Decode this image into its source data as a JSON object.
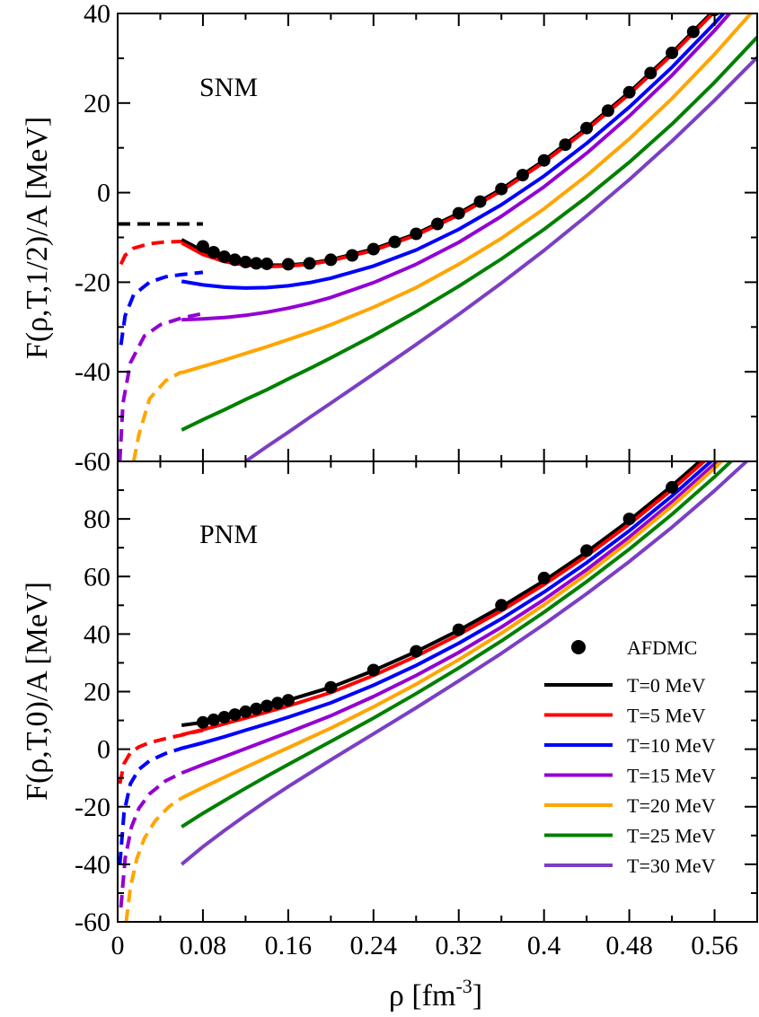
{
  "chart_data": [
    {
      "type": "line",
      "panel_label": "SNM",
      "ylabel": "F(ρ,T,1/2)/A [MeV]",
      "xlabel": "",
      "xlim": [
        0,
        0.6
      ],
      "ylim": [
        -60,
        40
      ],
      "yticks": [
        -60,
        -40,
        -20,
        0,
        20,
        40
      ],
      "ytick_labels": [
        "-60",
        "-40",
        "-20",
        "0",
        "20",
        "40"
      ],
      "grid": false,
      "markers": {
        "name": "AFDMC",
        "x": [
          0.08,
          0.09,
          0.1,
          0.11,
          0.12,
          0.13,
          0.14,
          0.16,
          0.18,
          0.2,
          0.22,
          0.24,
          0.26,
          0.28,
          0.3,
          0.32,
          0.34,
          0.36,
          0.38,
          0.4,
          0.42,
          0.44,
          0.46,
          0.48,
          0.5,
          0.52,
          0.54,
          0.56,
          0.58
        ],
        "y": [
          -12,
          -13.3,
          -14.3,
          -15.0,
          -15.5,
          -15.8,
          -15.9,
          -16.0,
          -15.8,
          -15.0,
          -14.0,
          -12.6,
          -11.0,
          -9.2,
          -7.0,
          -4.6,
          -2.0,
          0.8,
          3.9,
          7.2,
          10.7,
          14.4,
          18.3,
          22.4,
          26.7,
          31.2,
          35.9,
          40.8,
          45.9
        ]
      },
      "series": [
        {
          "name": "T=0 MeV",
          "color": "#000000",
          "dashed": {
            "x": [
              0.0,
              0.08
            ],
            "y": [
              -7.0,
              -7.0
            ]
          },
          "x": [
            0.06,
            0.08,
            0.1,
            0.12,
            0.14,
            0.16,
            0.18,
            0.2,
            0.24,
            0.28,
            0.32,
            0.36,
            0.4,
            0.44,
            0.48,
            0.52,
            0.56,
            0.6
          ],
          "y": [
            -10.5,
            -13.0,
            -14.8,
            -15.8,
            -16.2,
            -16.2,
            -15.8,
            -15.0,
            -12.6,
            -9.2,
            -4.6,
            0.8,
            7.2,
            14.4,
            22.4,
            31.2,
            40.8,
            51.0
          ]
        },
        {
          "name": "T=5 MeV",
          "color": "#ff0000",
          "dashed": {
            "x": [
              0.003,
              0.007,
              0.015,
              0.03,
              0.045,
              0.06
            ],
            "y": [
              -16.0,
              -14.0,
              -12.4,
              -11.4,
              -11.0,
              -10.9
            ]
          },
          "x": [
            0.06,
            0.08,
            0.1,
            0.12,
            0.14,
            0.16,
            0.18,
            0.2,
            0.24,
            0.28,
            0.32,
            0.36,
            0.4,
            0.44,
            0.48,
            0.52,
            0.56,
            0.6
          ],
          "y": [
            -11.2,
            -13.8,
            -15.4,
            -16.2,
            -16.5,
            -16.4,
            -16.0,
            -15.2,
            -12.9,
            -9.5,
            -5.0,
            0.4,
            6.8,
            14.0,
            22.0,
            30.8,
            40.4,
            50.6
          ]
        },
        {
          "name": "T=10 MeV",
          "color": "#0000ff",
          "dashed": {
            "x": [
              0.003,
              0.007,
              0.015,
              0.03,
              0.045,
              0.06,
              0.08
            ],
            "y": [
              -34.0,
              -27.5,
              -22.8,
              -20.0,
              -18.8,
              -18.3,
              -17.8
            ]
          },
          "x": [
            0.06,
            0.08,
            0.1,
            0.12,
            0.14,
            0.16,
            0.18,
            0.2,
            0.24,
            0.28,
            0.32,
            0.36,
            0.4,
            0.44,
            0.48,
            0.52,
            0.56,
            0.6
          ],
          "y": [
            -19.8,
            -20.6,
            -21.1,
            -21.3,
            -21.2,
            -20.8,
            -20.1,
            -19.1,
            -16.4,
            -12.8,
            -8.2,
            -2.7,
            3.7,
            11.0,
            19.1,
            28.0,
            37.8,
            48.3
          ]
        },
        {
          "name": "T=15 MeV",
          "color": "#9400d3",
          "dashed": {
            "x": [
              0.002,
              0.005,
              0.012,
              0.025,
              0.04,
              0.06,
              0.08
            ],
            "y": [
              -60.0,
              -47.0,
              -38.0,
              -32.0,
              -29.5,
              -28.0,
              -27.0
            ]
          },
          "x": [
            0.06,
            0.08,
            0.1,
            0.12,
            0.14,
            0.16,
            0.18,
            0.2,
            0.24,
            0.28,
            0.32,
            0.36,
            0.4,
            0.44,
            0.48,
            0.52,
            0.56,
            0.6
          ],
          "y": [
            -28.4,
            -28.2,
            -27.9,
            -27.4,
            -26.7,
            -25.8,
            -24.7,
            -23.4,
            -20.1,
            -16.0,
            -11.1,
            -5.3,
            1.3,
            8.8,
            17.1,
            26.2,
            36.2,
            47.0
          ]
        },
        {
          "name": "T=20 MeV",
          "color": "#ffa500",
          "dashed": {
            "x": [
              0.015,
              0.02,
              0.03,
              0.045,
              0.06
            ],
            "y": [
              -60.0,
              -54.0,
              -46.0,
              -42.0,
              -40.0
            ]
          },
          "x": [
            0.06,
            0.08,
            0.1,
            0.12,
            0.14,
            0.16,
            0.18,
            0.2,
            0.24,
            0.28,
            0.32,
            0.36,
            0.4,
            0.44,
            0.48,
            0.52,
            0.56,
            0.6
          ],
          "y": [
            -40.2,
            -38.8,
            -37.4,
            -35.9,
            -34.4,
            -32.8,
            -31.2,
            -29.5,
            -25.6,
            -21.2,
            -16.0,
            -10.2,
            -3.6,
            3.8,
            12.0,
            21.0,
            30.9,
            41.6
          ]
        },
        {
          "name": "T=25 MeV",
          "color": "#008000",
          "dashed": null,
          "x": [
            0.06,
            0.08,
            0.1,
            0.12,
            0.14,
            0.16,
            0.18,
            0.2,
            0.24,
            0.28,
            0.32,
            0.36,
            0.4,
            0.44,
            0.48,
            0.52,
            0.56,
            0.6
          ],
          "y": [
            -53.0,
            -50.7,
            -48.5,
            -46.2,
            -44.0,
            -41.6,
            -39.3,
            -36.9,
            -31.9,
            -26.6,
            -20.9,
            -14.8,
            -8.2,
            -1.0,
            6.8,
            15.3,
            24.6,
            34.7
          ]
        },
        {
          "name": "T=30 MeV",
          "color": "#7b3fc4",
          "dashed": null,
          "x": [
            0.12,
            0.14,
            0.16,
            0.18,
            0.2,
            0.24,
            0.28,
            0.32,
            0.36,
            0.4,
            0.44,
            0.48,
            0.52,
            0.56,
            0.6
          ],
          "y": [
            -60.0,
            -56.7,
            -53.5,
            -50.2,
            -47.0,
            -40.5,
            -33.9,
            -27.2,
            -20.2,
            -12.9,
            -5.2,
            2.9,
            11.5,
            20.6,
            30.2
          ]
        }
      ]
    },
    {
      "type": "line",
      "panel_label": "PNM",
      "ylabel": "F(ρ,T,0)/A [MeV]",
      "xlabel": "ρ [fm⁻³]",
      "xlabel_base": "ρ  [fm",
      "xlabel_sup": "-3",
      "xlabel_close": "]",
      "xlim": [
        0,
        0.6
      ],
      "ylim": [
        -60,
        100
      ],
      "xticks": [
        0,
        0.08,
        0.16,
        0.24,
        0.32,
        0.4,
        0.48,
        0.56
      ],
      "xtick_labels": [
        "0",
        "0.08",
        "0.16",
        "0.24",
        "0.32",
        "0.4",
        "0.48",
        "0.56"
      ],
      "yticks": [
        -60,
        -40,
        -20,
        0,
        20,
        40,
        60,
        80
      ],
      "ytick_labels": [
        "-60",
        "-40",
        "-20",
        "0",
        "20",
        "40",
        "60",
        "80"
      ],
      "grid": false,
      "legend_position": "lower-right",
      "markers": {
        "name": "AFDMC",
        "x": [
          0.08,
          0.09,
          0.1,
          0.11,
          0.12,
          0.13,
          0.14,
          0.15,
          0.16,
          0.2,
          0.24,
          0.28,
          0.32,
          0.36,
          0.4,
          0.44,
          0.48,
          0.52
        ],
        "y": [
          9.3,
          10.2,
          11.1,
          12.0,
          13.0,
          14.0,
          15.0,
          16.0,
          17.0,
          21.5,
          27.5,
          34.0,
          41.5,
          50.0,
          59.5,
          69.0,
          80.0,
          91.0
        ]
      },
      "series": [
        {
          "name": "T=0 MeV",
          "color": "#000000",
          "dashed": null,
          "x": [
            0.06,
            0.08,
            0.1,
            0.12,
            0.14,
            0.16,
            0.2,
            0.24,
            0.28,
            0.32,
            0.36,
            0.4,
            0.44,
            0.48,
            0.52,
            0.56,
            0.6
          ],
          "y": [
            8.3,
            9.3,
            11.1,
            13.0,
            15.0,
            17.0,
            21.5,
            27.3,
            33.9,
            41.3,
            49.5,
            58.5,
            68.5,
            79.5,
            91.5,
            104.5,
            118.5
          ]
        },
        {
          "name": "T=5 MeV",
          "color": "#ff0000",
          "dashed": {
            "x": [
              0.002,
              0.006,
              0.012,
              0.02,
              0.03,
              0.045,
              0.06,
              0.08
            ],
            "y": [
              -12.0,
              -5.0,
              -1.2,
              0.8,
              2.3,
              3.7,
              4.9,
              6.6
            ]
          },
          "x": [
            0.06,
            0.08,
            0.1,
            0.12,
            0.14,
            0.16,
            0.2,
            0.24,
            0.28,
            0.32,
            0.36,
            0.4,
            0.44,
            0.48,
            0.52,
            0.56,
            0.6
          ],
          "y": [
            5.0,
            6.8,
            8.8,
            10.8,
            12.9,
            15.0,
            19.7,
            25.6,
            32.3,
            39.8,
            48.1,
            57.2,
            67.2,
            78.2,
            90.2,
            103.2,
            117.2
          ]
        },
        {
          "name": "T=10 MeV",
          "color": "#0000ff",
          "dashed": {
            "x": [
              0.002,
              0.006,
              0.012,
              0.02,
              0.03,
              0.045,
              0.06,
              0.08
            ],
            "y": [
              -40.0,
              -22.0,
              -12.0,
              -7.0,
              -4.0,
              -1.5,
              0.3,
              2.2
            ]
          },
          "x": [
            0.06,
            0.08,
            0.1,
            0.12,
            0.14,
            0.16,
            0.2,
            0.24,
            0.28,
            0.32,
            0.36,
            0.4,
            0.44,
            0.48,
            0.52,
            0.56,
            0.6
          ],
          "y": [
            0.3,
            2.2,
            4.3,
            6.6,
            8.8,
            11.1,
            16.1,
            22.2,
            29.1,
            36.8,
            45.3,
            54.6,
            64.8,
            75.9,
            88.0,
            101.1,
            115.2
          ]
        },
        {
          "name": "T=15 MeV",
          "color": "#9400d3",
          "dashed": {
            "x": [
              0.003,
              0.007,
              0.013,
              0.02,
              0.03,
              0.045,
              0.06
            ],
            "y": [
              -55.0,
              -38.0,
              -27.0,
              -20.5,
              -15.5,
              -11.0,
              -8.3
            ]
          },
          "x": [
            0.06,
            0.08,
            0.1,
            0.12,
            0.14,
            0.16,
            0.2,
            0.24,
            0.28,
            0.32,
            0.36,
            0.4,
            0.44,
            0.48,
            0.52,
            0.56,
            0.6
          ],
          "y": [
            -8.3,
            -5.4,
            -2.6,
            0.2,
            3.0,
            5.8,
            11.6,
            18.3,
            25.6,
            33.6,
            42.4,
            52.0,
            62.4,
            73.7,
            85.9,
            99.1,
            113.3
          ]
        },
        {
          "name": "T=20 MeV",
          "color": "#ffa500",
          "dashed": {
            "x": [
              0.008,
              0.012,
              0.018,
              0.025,
              0.035,
              0.048,
              0.06
            ],
            "y": [
              -60.0,
              -48.0,
              -38.0,
              -31.0,
              -25.0,
              -20.0,
              -17.0
            ]
          },
          "x": [
            0.06,
            0.08,
            0.1,
            0.12,
            0.14,
            0.16,
            0.2,
            0.24,
            0.28,
            0.32,
            0.36,
            0.4,
            0.44,
            0.48,
            0.52,
            0.56,
            0.6
          ],
          "y": [
            -17.0,
            -13.3,
            -9.8,
            -6.3,
            -2.9,
            0.5,
            7.3,
            14.7,
            22.6,
            31.1,
            40.3,
            50.2,
            60.8,
            72.2,
            84.5,
            97.7,
            111.9
          ]
        },
        {
          "name": "T=25 MeV",
          "color": "#008000",
          "dashed": null,
          "x": [
            0.06,
            0.08,
            0.1,
            0.12,
            0.14,
            0.16,
            0.2,
            0.24,
            0.28,
            0.32,
            0.36,
            0.4,
            0.44,
            0.48,
            0.52,
            0.56,
            0.6
          ],
          "y": [
            -27.0,
            -22.3,
            -17.9,
            -13.6,
            -9.4,
            -5.3,
            2.7,
            10.8,
            19.3,
            28.2,
            37.6,
            47.6,
            58.2,
            69.5,
            81.6,
            94.6,
            108.6
          ]
        },
        {
          "name": "T=30 MeV",
          "color": "#7b3fc4",
          "dashed": null,
          "x": [
            0.06,
            0.08,
            0.1,
            0.12,
            0.14,
            0.16,
            0.2,
            0.24,
            0.28,
            0.32,
            0.36,
            0.4,
            0.44,
            0.48,
            0.52,
            0.56,
            0.6
          ],
          "y": [
            -40.0,
            -33.9,
            -28.3,
            -23.0,
            -17.9,
            -13.0,
            -3.7,
            5.3,
            14.4,
            23.7,
            33.3,
            43.4,
            54.0,
            65.2,
            77.1,
            89.8,
            103.4
          ]
        }
      ]
    }
  ]
}
